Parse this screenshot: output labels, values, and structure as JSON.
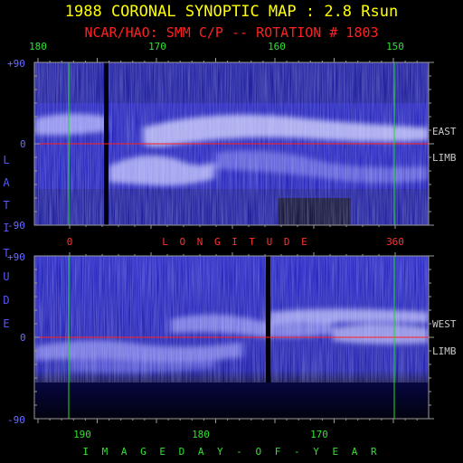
{
  "header": {
    "title": "1988 CORONAL SYNOPTIC MAP : 2.8 Rsun",
    "subtitle": "NCAR/HAO: SMM C/P -- ROTATION # 1803"
  },
  "top_axis": {
    "ticks": [
      "180",
      "170",
      "160",
      "150"
    ]
  },
  "middle_axis": {
    "ticks": [
      "0",
      "360"
    ],
    "title": "L O N G I T U D E"
  },
  "bottom_axis": {
    "ticks": [
      "190",
      "180",
      "170"
    ],
    "title": "I M A G E   D A Y - O F - Y E A R"
  },
  "latitude": {
    "top_panel": [
      "+90",
      "0",
      "-90"
    ],
    "bottom_panel": [
      "+90",
      "0",
      "-90"
    ],
    "vertical_label": [
      "L",
      "A",
      "T",
      "I",
      "T",
      "U",
      "D",
      "E"
    ]
  },
  "side_labels": {
    "top": [
      "EAST",
      "LIMB"
    ],
    "bottom": [
      "WEST",
      "LIMB"
    ]
  },
  "colors": {
    "title": "#ffff00",
    "subtitle": "#ff2020",
    "day_ticks": "#30e030",
    "longitude": "#ff3030",
    "latitude": "#6b6bff",
    "equator_line": "#ff2020",
    "marker_line": "#20e020",
    "map_blue": "#2a2ae0"
  }
}
